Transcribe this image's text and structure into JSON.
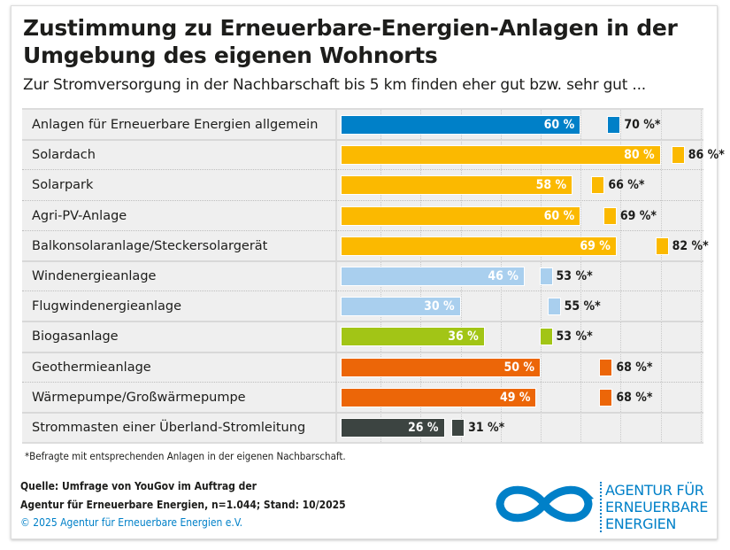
{
  "title": "Zustimmung zu Erneuerbare-Energien-Anlagen in der Umgebung des eigenen Wohnorts",
  "title_line1": "Zustimmung zu Erneuerbare-Energien-Anlagen in der",
  "title_line2": "Umgebung des eigenen Wohnorts",
  "subtitle": "Zur Stromversorgung in der Nachbarschaft bis 5 km finden eher gut bzw. sehr gut  ...",
  "chart_data": {
    "type": "bar",
    "orientation": "horizontal",
    "xlim": [
      0,
      90
    ],
    "grid": true,
    "categories": [
      "Anlagen für Erneuerbare Energien allgemein",
      "Solardach",
      "Solarpark",
      "Agri-PV-Anlage",
      "Balkonsolaranlage/Steckersolargerät",
      "Windenergieanlage",
      "Flugwindenergieanlage",
      "Biogasanlage",
      "Geothermieanlage",
      "Wärmepumpe/Großwärmepumpe",
      "Strommasten einer Überland-Stromleitung"
    ],
    "values": [
      60,
      80,
      58,
      60,
      69,
      46,
      30,
      36,
      50,
      49,
      26
    ],
    "values_neighbors": [
      70,
      86,
      66,
      69,
      82,
      53,
      55,
      53,
      68,
      68,
      31
    ],
    "value_labels": [
      "60 %",
      "80 %",
      "58 %",
      "60 %",
      "69 %",
      "46 %",
      "30 %",
      "36 %",
      "50 %",
      "49 %",
      "26 %"
    ],
    "neighbor_labels": [
      "70 %*",
      "86 %*",
      "66 %*",
      "69 %*",
      "82 %*",
      "53 %*",
      "55 %*",
      "53 %*",
      "68 %*",
      "68 %*",
      "31 %*"
    ],
    "colors": [
      "#0080c8",
      "#fbb900",
      "#fbb900",
      "#fbb900",
      "#fbb900",
      "#a9cfee",
      "#a9cfee",
      "#a2c516",
      "#ec6608",
      "#ec6608",
      "#3c4441"
    ],
    "groups": [
      [
        0
      ],
      [
        1,
        2,
        3,
        4
      ],
      [
        5,
        6
      ],
      [
        7
      ],
      [
        8,
        9
      ],
      [
        10
      ]
    ]
  },
  "footnote": "*Befragte mit entsprechenden Anlagen in der eigenen Nachbarschaft.",
  "source_line1": "Quelle: Umfrage von YouGov im Auftrag der",
  "source_line2": "Agentur für Erneuerbare Energien, n=1.044; Stand: 10/2025",
  "copyright": "© 2025 Agentur für Erneuerbare Energien e.V.",
  "logo": {
    "line1": "AGENTUR FÜR",
    "line2": "ERNEUERBARE",
    "line3": "ENERGIEN",
    "color": "#0080c8"
  }
}
